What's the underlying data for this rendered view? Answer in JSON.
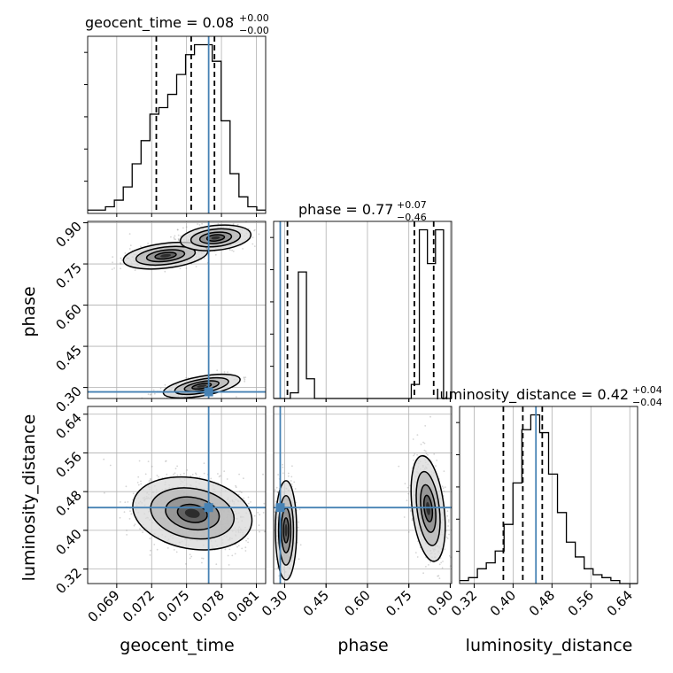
{
  "chart_data": {
    "type": "corner",
    "parameters": [
      "geocent_time",
      "phase",
      "luminosity_distance"
    ],
    "titles": [
      {
        "param": "geocent_time",
        "label": "geocent_time = 0.08",
        "sup": "+0.00",
        "sub": "−0.00"
      },
      {
        "param": "phase",
        "label": "phase = 0.77",
        "sup": "+0.07",
        "sub": "−0.46"
      },
      {
        "param": "luminosity_distance",
        "label": "luminosity_distance = 0.42",
        "sup": "+0.04",
        "sub": "−0.04"
      }
    ],
    "truths": {
      "geocent_time": 0.0769,
      "phase": 0.284,
      "luminosity_distance": 0.447
    },
    "ranges": {
      "geocent_time": [
        0.0665,
        0.0818
      ],
      "phase": [
        0.26,
        0.905
      ],
      "luminosity_distance": [
        0.29,
        0.656
      ]
    },
    "ticks": {
      "geocent_time": [
        "0.069",
        "0.072",
        "0.075",
        "0.078",
        "0.081"
      ],
      "phase": [
        "0.30",
        "0.45",
        "0.60",
        "0.75",
        "0.90"
      ],
      "luminosity_distance": [
        "0.32",
        "0.40",
        "0.48",
        "0.56",
        "0.64"
      ]
    },
    "quantiles": {
      "geocent_time": [
        0.0724,
        0.0754,
        0.0774
      ],
      "phase": [
        0.31,
        0.77,
        0.84
      ],
      "luminosity_distance": [
        0.38,
        0.42,
        0.46
      ]
    },
    "hist_geocent_time": [
      1,
      1,
      2,
      4,
      8,
      15,
      22,
      30,
      32,
      36,
      42,
      48,
      51,
      51,
      46,
      28,
      12,
      5,
      2,
      1
    ],
    "hist_phase": [
      0,
      0,
      2,
      45,
      7,
      0,
      0,
      0,
      0,
      0,
      0,
      0,
      0,
      0,
      0,
      0,
      0,
      5,
      60,
      48,
      60,
      0
    ],
    "hist_luminosity_distance": [
      1,
      2,
      5,
      7,
      11,
      20,
      34,
      52,
      57,
      51,
      37,
      24,
      14,
      9,
      5,
      3,
      2,
      1,
      0,
      0
    ],
    "grid": true
  }
}
